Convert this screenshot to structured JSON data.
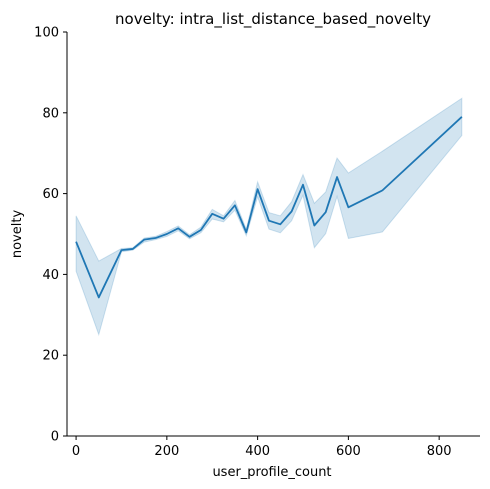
{
  "chart_data": {
    "type": "line",
    "title": "novelty: intra_list_distance_based_novelty",
    "xlabel": "user_profile_count",
    "ylabel": "novelty",
    "xlim": [
      -20,
      890
    ],
    "ylim": [
      0,
      100
    ],
    "xticks": [
      0,
      200,
      400,
      600,
      800
    ],
    "yticks": [
      0,
      20,
      40,
      60,
      80,
      100
    ],
    "grid": false,
    "colors": {
      "line": "#1f77b4",
      "band": "#1f77b4"
    },
    "series": [
      {
        "x": [
          0,
          50,
          100,
          125,
          150,
          175,
          200,
          225,
          250,
          275,
          300,
          325,
          350,
          375,
          400,
          425,
          450,
          475,
          500,
          525,
          550,
          575,
          600,
          675,
          850
        ],
        "y": [
          48.1,
          34.3,
          46.0,
          46.3,
          48.6,
          49.0,
          50.0,
          51.4,
          49.3,
          51.0,
          55.0,
          53.8,
          57.1,
          50.4,
          61.1,
          53.3,
          52.4,
          55.6,
          62.2,
          52.1,
          55.4,
          64.1,
          56.6,
          60.8,
          79.0
        ],
        "lower": [
          40.8,
          25.1,
          45.6,
          46.0,
          48.0,
          48.6,
          49.4,
          50.8,
          48.8,
          50.3,
          53.7,
          53.0,
          55.9,
          49.6,
          59.2,
          51.2,
          50.3,
          53.3,
          59.6,
          46.6,
          50.1,
          59.3,
          48.9,
          50.5,
          74.4
        ],
        "upper": [
          54.5,
          43.3,
          46.4,
          46.6,
          49.0,
          49.4,
          50.6,
          52.0,
          49.8,
          51.7,
          56.1,
          54.5,
          58.3,
          51.2,
          62.9,
          55.3,
          54.5,
          58.0,
          64.7,
          57.6,
          60.4,
          68.8,
          65.1,
          70.5,
          83.6
        ]
      }
    ]
  }
}
